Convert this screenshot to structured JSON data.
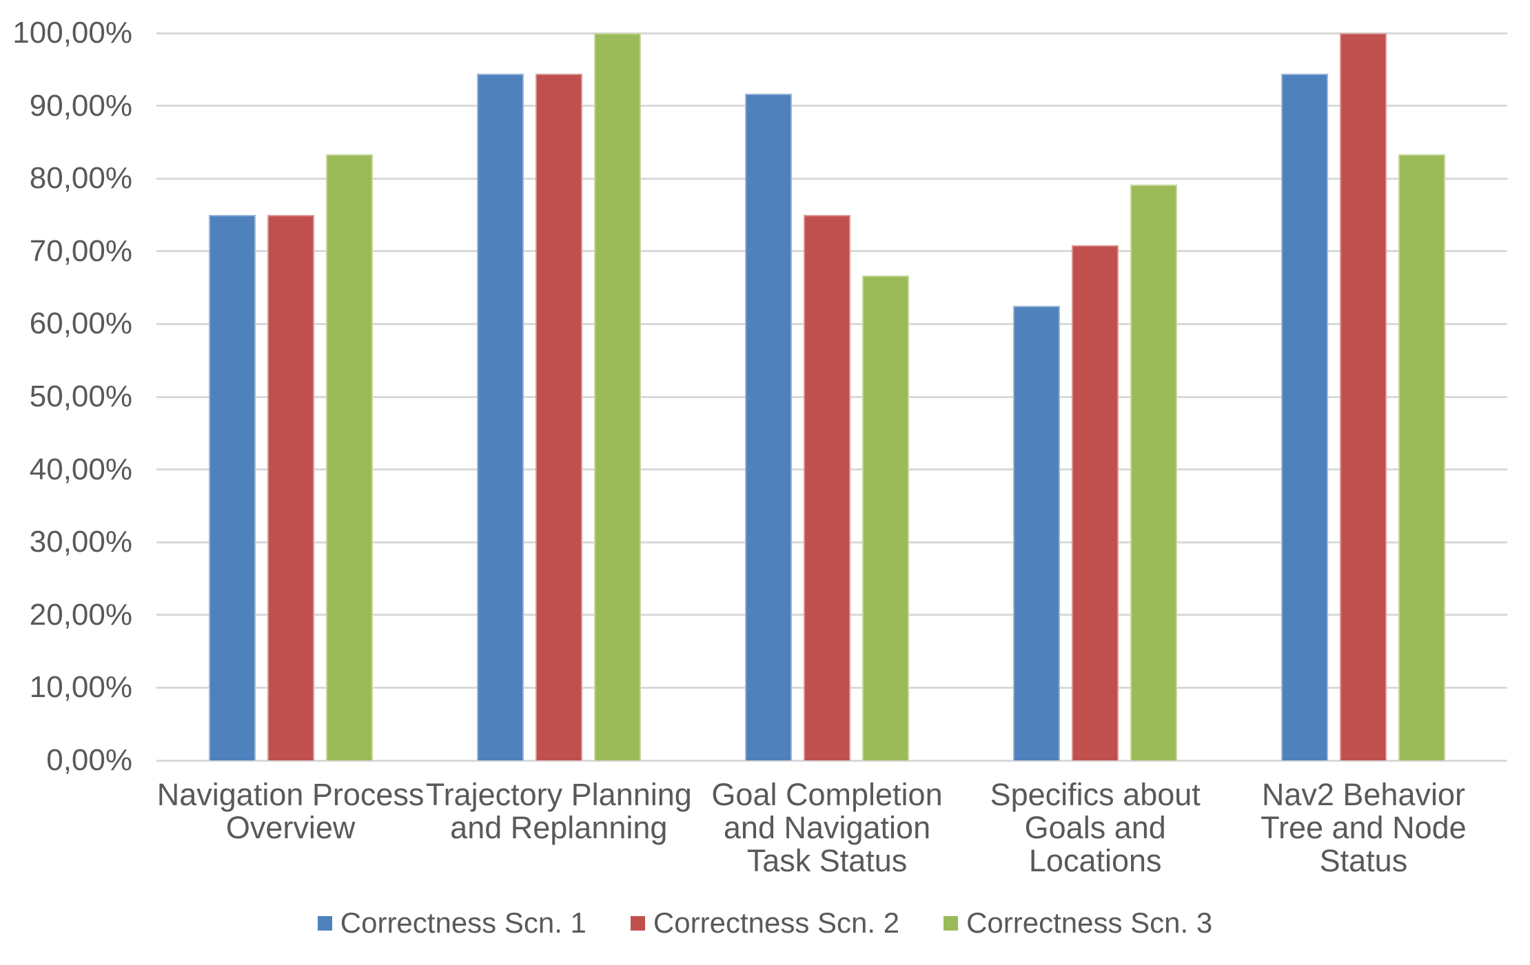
{
  "chart_data": {
    "type": "bar",
    "title": "",
    "categories": [
      "Navigation Process Overview",
      "Trajectory Planning and Replanning",
      "Goal Completion and Navigation Task Status",
      "Specifics about Goals and Locations",
      "Nav2 Behavior Tree and Node Status"
    ],
    "series": [
      {
        "name": "Correctness Scn. 1",
        "color": "#4F81BD",
        "values": [
          75.0,
          94.44,
          91.67,
          62.5,
          94.44
        ]
      },
      {
        "name": "Correctness Scn. 2",
        "color": "#C0504D",
        "values": [
          75.0,
          94.44,
          75.0,
          70.83,
          100.0
        ]
      },
      {
        "name": "Correctness Scn. 3",
        "color": "#9BBB59",
        "values": [
          83.33,
          100.0,
          66.67,
          79.17,
          83.33
        ]
      }
    ],
    "xlabel": "",
    "ylabel": "",
    "ylim": [
      0,
      100
    ],
    "yticks": [
      {
        "value": 0,
        "label": "0,00%"
      },
      {
        "value": 10,
        "label": "10,00%"
      },
      {
        "value": 20,
        "label": "20,00%"
      },
      {
        "value": 30,
        "label": "30,00%"
      },
      {
        "value": 40,
        "label": "40,00%"
      },
      {
        "value": 50,
        "label": "50,00%"
      },
      {
        "value": 60,
        "label": "60,00%"
      },
      {
        "value": 70,
        "label": "70,00%"
      },
      {
        "value": 80,
        "label": "80,00%"
      },
      {
        "value": 90,
        "label": "90,00%"
      },
      {
        "value": 100,
        "label": "100,00%"
      }
    ],
    "grid": true,
    "legend_position": "bottom",
    "colors": {
      "gridline": "#D9D9D9",
      "text": "#595959",
      "background": "#FFFFFF"
    }
  }
}
